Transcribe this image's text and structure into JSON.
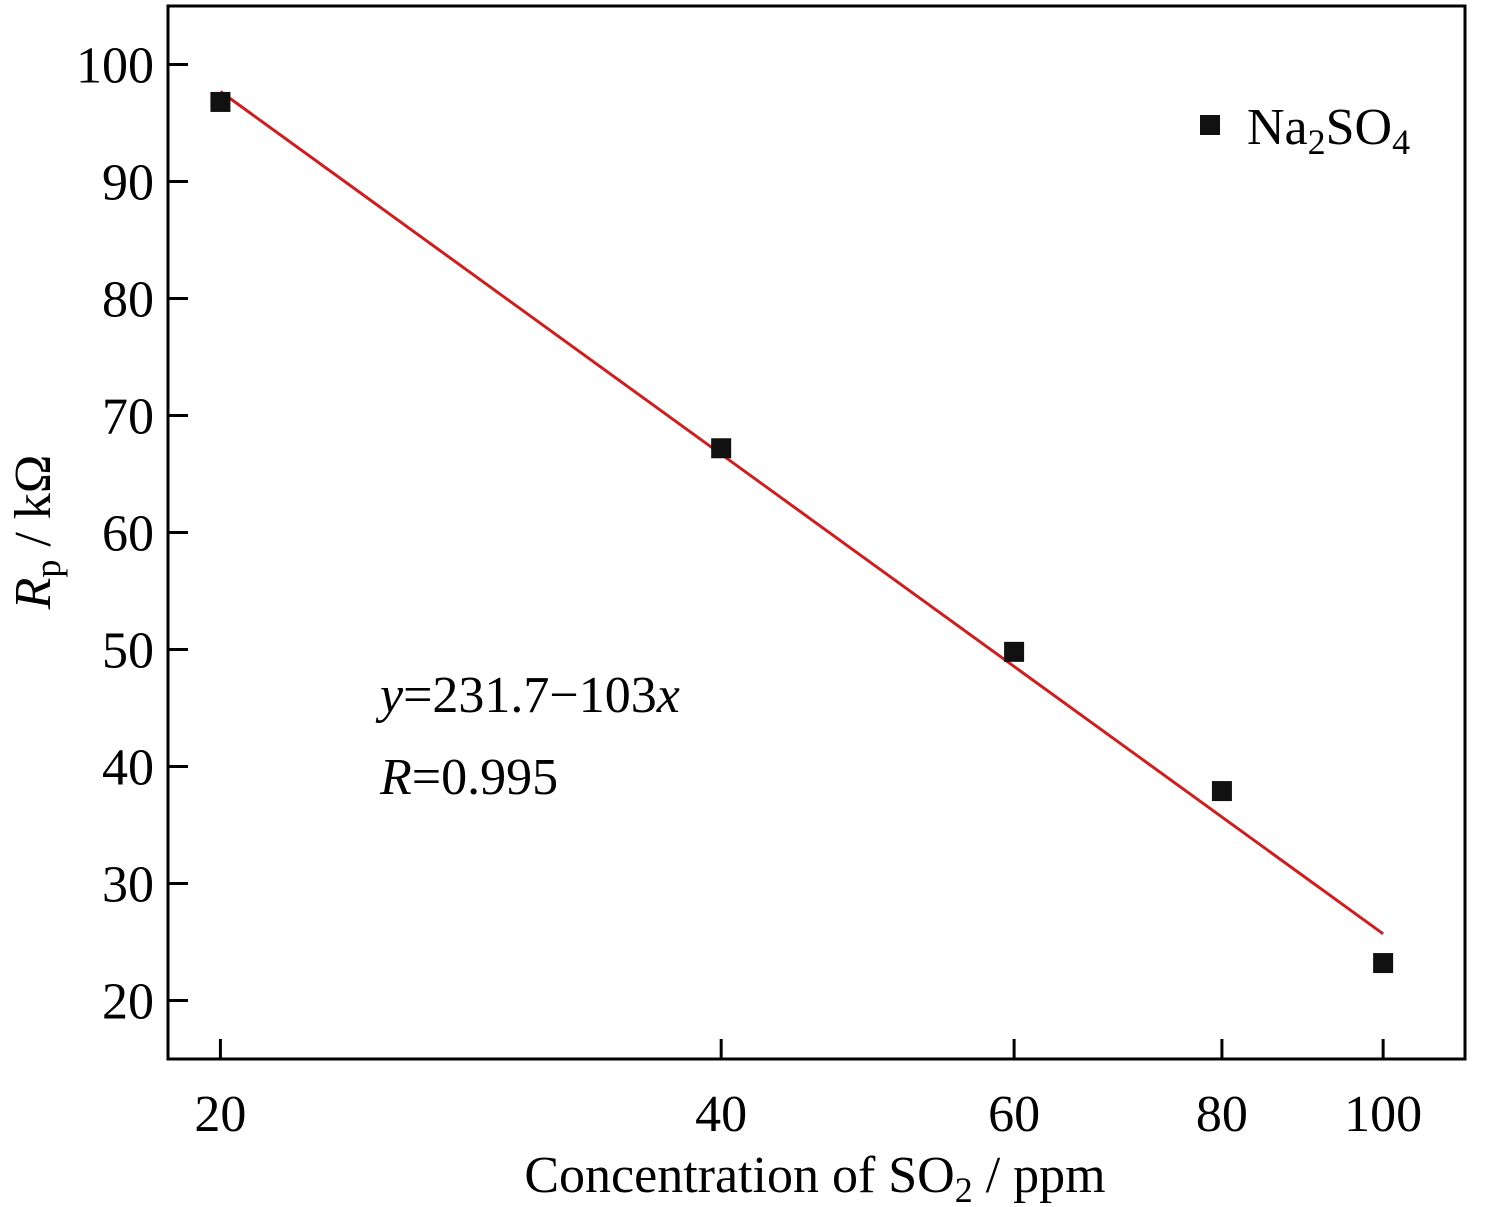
{
  "chart_data": {
    "type": "scatter",
    "xlabel": {
      "main": "Concentration of SO",
      "sub": "2",
      "tail": " / ppm"
    },
    "ylabel": {
      "var": "R",
      "sub": "p",
      "tail": " / kΩ"
    },
    "x_scale": "log",
    "xlim": [
      18.6,
      112
    ],
    "ylim": [
      15,
      105
    ],
    "x_ticks": [
      20,
      40,
      60,
      80,
      100
    ],
    "y_ticks": [
      20,
      30,
      40,
      50,
      60,
      70,
      80,
      90,
      100
    ],
    "series": [
      {
        "name": {
          "main": "Na",
          "sub1": "2",
          "mid": "SO",
          "sub2": "4"
        },
        "marker": "square",
        "color": "#111111",
        "points": [
          {
            "x": 20,
            "y": 96.8
          },
          {
            "x": 40,
            "y": 67.2
          },
          {
            "x": 60,
            "y": 49.8
          },
          {
            "x": 80,
            "y": 37.9
          },
          {
            "x": 100,
            "y": 23.2
          }
        ]
      }
    ],
    "fit": {
      "color": "#cc1f1f",
      "x_range": [
        20,
        100
      ],
      "intercept": 231.7,
      "slope": -103,
      "equation": {
        "y": "y",
        "mid": "=231.7−103",
        "x": "x"
      },
      "r": {
        "var": "R",
        "val": "=0.995"
      }
    },
    "grid": false,
    "legend_position": "top-right"
  }
}
